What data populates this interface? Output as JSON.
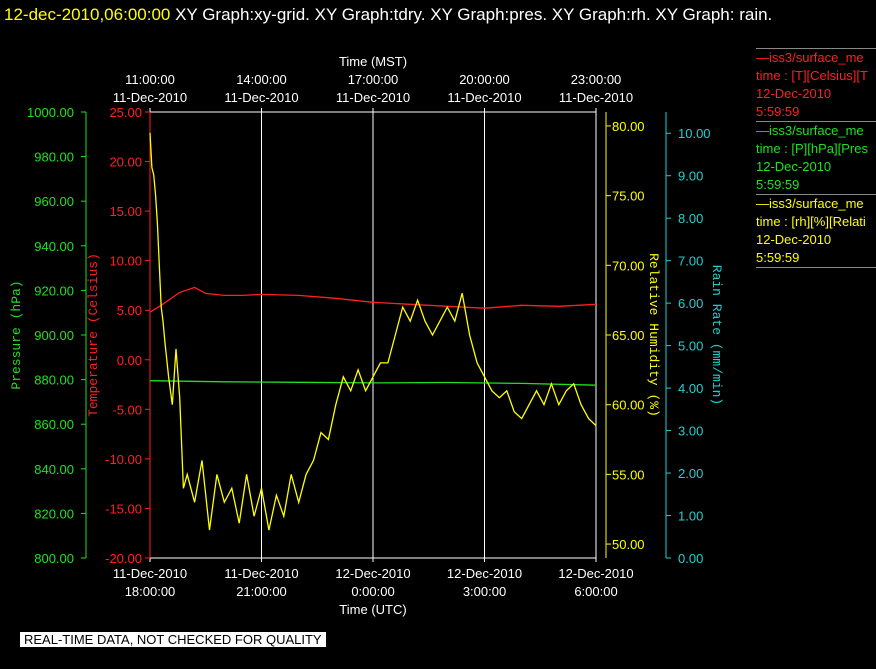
{
  "header": {
    "timestamp": "12-dec-2010,06:00:00",
    "titles": "XY Graph:xy-grid.  XY Graph:tdry.  XY Graph:pres.  XY Graph:rh.  XY Graph: rain."
  },
  "legend": [
    {
      "line1": "—iss3/surface_me",
      "line2": "time : [T][Celsius][T",
      "line3": "12-Dec-2010",
      "line4": "5:59:59",
      "color": "#ff2020"
    },
    {
      "line1": "—iss3/surface_me",
      "line2": "time : [P][hPa][Pres",
      "line3": "12-Dec-2010",
      "line4": "5:59:59",
      "color": "#20e020"
    },
    {
      "line1": "—iss3/surface_me",
      "line2": "time : [rh][%][Relati",
      "line3": "12-Dec-2010",
      "line4": "5:59:59",
      "color": "#ffff00"
    }
  ],
  "footer": "REAL-TIME DATA, NOT CHECKED FOR QUALITY",
  "chart_data": {
    "type": "line",
    "x_top_label": "Time (MST)",
    "x_bottom_label": "Time (UTC)",
    "x_ticks_top": [
      {
        "t": 0,
        "line1": "11:00:00",
        "line2": "11-Dec-2010"
      },
      {
        "t": 3,
        "line1": "14:00:00",
        "line2": "11-Dec-2010"
      },
      {
        "t": 6,
        "line1": "17:00:00",
        "line2": "11-Dec-2010"
      },
      {
        "t": 9,
        "line1": "20:00:00",
        "line2": "11-Dec-2010"
      },
      {
        "t": 12,
        "line1": "23:00:00",
        "line2": "11-Dec-2010"
      }
    ],
    "x_ticks_bottom": [
      {
        "t": 0,
        "line1": "11-Dec-2010",
        "line2": "18:00:00"
      },
      {
        "t": 3,
        "line1": "11-Dec-2010",
        "line2": "21:00:00"
      },
      {
        "t": 6,
        "line1": "12-Dec-2010",
        "line2": "0:00:00"
      },
      {
        "t": 9,
        "line1": "12-Dec-2010",
        "line2": "3:00:00"
      },
      {
        "t": 12,
        "line1": "12-Dec-2010",
        "line2": "6:00:00"
      }
    ],
    "axes": {
      "pressure": {
        "label": "Pressure (hPa)",
        "range": [
          800,
          1000
        ],
        "ticks": [
          "800.00",
          "820.00",
          "840.00",
          "860.00",
          "880.00",
          "900.00",
          "920.00",
          "940.00",
          "960.00",
          "980.00",
          "1000.00"
        ],
        "color": "#20e020"
      },
      "temperature": {
        "label": "Temperature (Celsius)",
        "range": [
          -20,
          25
        ],
        "ticks": [
          "-20.00",
          "-15.00",
          "-10.00",
          "-5.00",
          "0.00",
          "5.00",
          "10.00",
          "15.00",
          "20.00",
          "25.00"
        ],
        "color": "#ff2020"
      },
      "rh": {
        "label": "Relative Humidity (%)",
        "range": [
          49,
          81
        ],
        "ticks": [
          "50.00",
          "55.00",
          "60.00",
          "65.00",
          "70.00",
          "75.00",
          "80.00"
        ],
        "color": "#ffff00"
      },
      "rain": {
        "label": "Rain Rate (mm/min)",
        "range": [
          0,
          10.5
        ],
        "ticks": [
          "0.00",
          "1.00",
          "2.00",
          "3.00",
          "4.00",
          "5.00",
          "6.00",
          "7.00",
          "8.00",
          "9.00",
          "10.00"
        ],
        "color": "#20d0d0"
      }
    },
    "series": [
      {
        "name": "Temperature",
        "axis": "temperature",
        "color": "#ff2020",
        "x": [
          0,
          0.3,
          0.8,
          1.2,
          1.5,
          2.0,
          2.5,
          3.0,
          4.0,
          5.0,
          6.0,
          7.0,
          8.0,
          9.0,
          10.0,
          11.0,
          12.0
        ],
        "y": [
          4.8,
          5.5,
          6.8,
          7.3,
          6.7,
          6.5,
          6.5,
          6.6,
          6.5,
          6.2,
          5.8,
          5.6,
          5.4,
          5.2,
          5.5,
          5.4,
          5.6
        ]
      },
      {
        "name": "Pressure",
        "axis": "pressure",
        "color": "#20e020",
        "x": [
          0,
          2,
          4,
          6,
          8,
          10,
          12
        ],
        "y": [
          879.5,
          879.0,
          878.8,
          878.5,
          878.7,
          878.3,
          877.5
        ]
      },
      {
        "name": "Relative Humidity",
        "axis": "rh",
        "color": "#ffff00",
        "x": [
          0,
          0.05,
          0.1,
          0.15,
          0.2,
          0.25,
          0.3,
          0.35,
          0.4,
          0.5,
          0.6,
          0.7,
          0.8,
          0.9,
          1.0,
          1.2,
          1.4,
          1.6,
          1.8,
          2.0,
          2.2,
          2.4,
          2.6,
          2.8,
          3.0,
          3.2,
          3.4,
          3.6,
          3.8,
          4.0,
          4.2,
          4.4,
          4.6,
          4.8,
          5.0,
          5.2,
          5.4,
          5.6,
          5.8,
          6.0,
          6.2,
          6.4,
          6.6,
          6.8,
          7.0,
          7.2,
          7.4,
          7.6,
          7.8,
          8.0,
          8.2,
          8.4,
          8.6,
          8.8,
          9.0,
          9.2,
          9.4,
          9.6,
          9.8,
          10.0,
          10.2,
          10.4,
          10.6,
          10.8,
          11.0,
          11.2,
          11.4,
          11.6,
          11.8,
          12.0
        ],
        "y": [
          79.5,
          77.0,
          76.5,
          75.0,
          73.0,
          70.0,
          67.0,
          66.0,
          64.5,
          62.0,
          60.0,
          64.0,
          60.5,
          54.0,
          55.0,
          53.0,
          56.0,
          51.0,
          55.0,
          53.0,
          54.0,
          51.5,
          55.0,
          52.0,
          54.0,
          51.0,
          53.5,
          52.0,
          55.0,
          53.0,
          55.0,
          56.0,
          58.0,
          57.5,
          60.0,
          62.0,
          61.0,
          62.5,
          61.0,
          62.0,
          63.0,
          63.0,
          65.0,
          67.0,
          66.0,
          67.5,
          66.0,
          65.0,
          66.0,
          67.0,
          66.0,
          68.0,
          65.0,
          63.0,
          62.0,
          61.0,
          60.5,
          61.0,
          59.5,
          59.0,
          60.0,
          61.0,
          60.0,
          61.5,
          60.0,
          61.0,
          61.5,
          60.0,
          59.0,
          58.5
        ]
      }
    ]
  }
}
